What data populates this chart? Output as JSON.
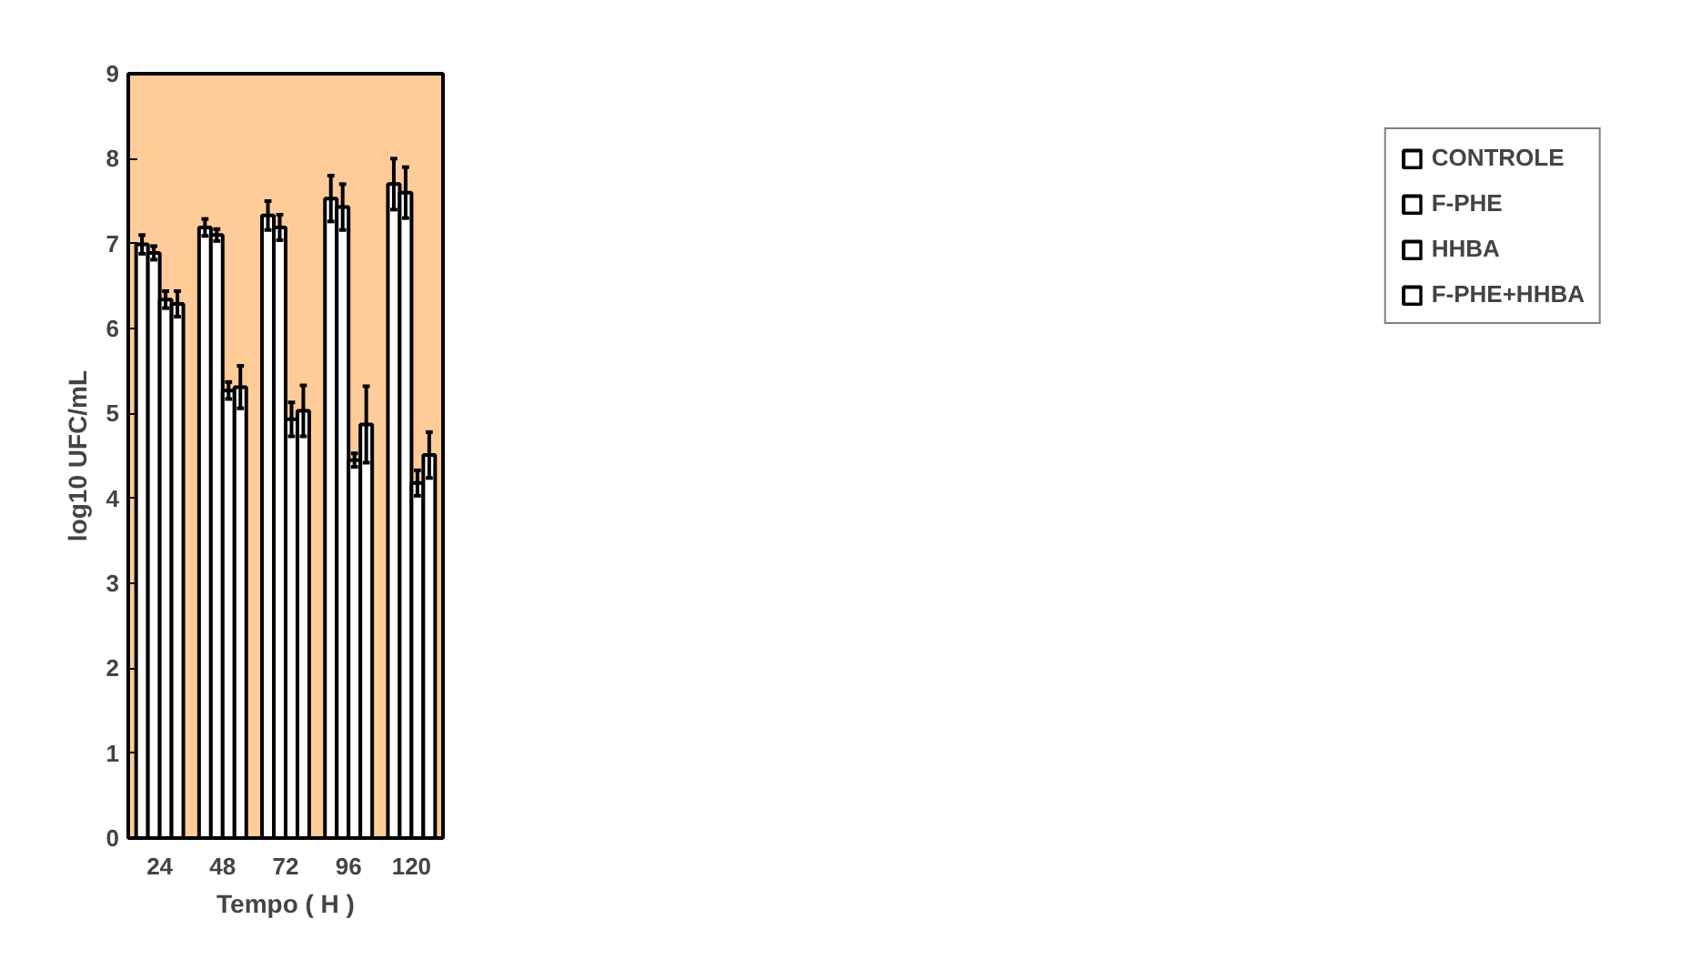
{
  "chart_data": {
    "type": "bar",
    "xlabel": "Tempo ( H )",
    "ylabel": "log10 UFC/mL",
    "categories": [
      "24",
      "48",
      "72",
      "96",
      "120"
    ],
    "series": [
      {
        "name": "CONTROLE",
        "color": "#ffffff",
        "values": [
          6.99,
          7.19,
          7.33,
          7.53,
          7.7
        ],
        "errors": [
          0.11,
          0.1,
          0.17,
          0.27,
          0.3
        ]
      },
      {
        "name": "F-PHE",
        "color": "#ffffff",
        "values": [
          6.89,
          7.1,
          7.19,
          7.43,
          7.6
        ],
        "errors": [
          0.08,
          0.07,
          0.15,
          0.27,
          0.3
        ]
      },
      {
        "name": "HHBA",
        "color": "#ffffff",
        "values": [
          6.34,
          5.27,
          4.93,
          4.45,
          4.18
        ],
        "errors": [
          0.1,
          0.1,
          0.2,
          0.08,
          0.15
        ]
      },
      {
        "name": "F-PHE+HHBA",
        "color": "#ffffff",
        "values": [
          6.29,
          5.31,
          5.03,
          4.87,
          4.51
        ],
        "errors": [
          0.15,
          0.25,
          0.3,
          0.45,
          0.27
        ]
      }
    ],
    "ylim": [
      0,
      9
    ],
    "yticks": [
      0,
      1,
      2,
      3,
      4,
      5,
      6,
      7,
      8,
      9
    ],
    "grid": false,
    "legend": "right"
  }
}
